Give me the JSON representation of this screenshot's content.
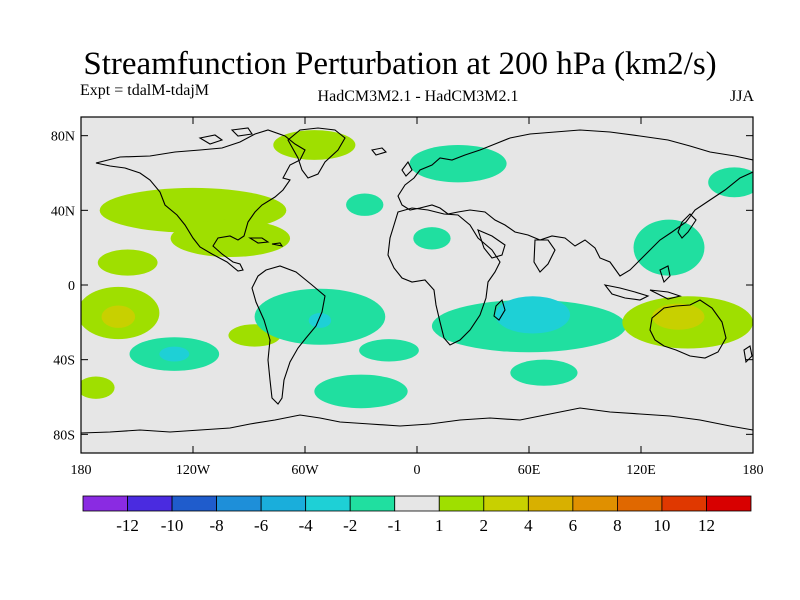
{
  "title": "Streamfunction Perturbation at 200 hPa (km2/s)",
  "experiment": "Expt = tdalM-tdajM",
  "model": "HadCM3M2.1 - HadCM3M2.1",
  "season": "JJA",
  "axes": {
    "lat_labels": [
      "80N",
      "40N",
      "0",
      "40S",
      "80S"
    ],
    "lat_values": [
      80,
      40,
      0,
      -40,
      -80
    ],
    "lon_labels": [
      "180",
      "120W",
      "60W",
      "0",
      "60E",
      "120E",
      "180"
    ],
    "lon_values": [
      -180,
      -120,
      -60,
      0,
      60,
      120,
      180
    ],
    "lat_range": [
      -90,
      90
    ],
    "lon_range": [
      -180,
      180
    ]
  },
  "colorbar": {
    "colors": [
      "#8a2be2",
      "#4a2be0",
      "#1f5ccc",
      "#1e8fd9",
      "#1aaedb",
      "#1ed0d6",
      "#20dfa0",
      "#e6e6e6",
      "#9fdf00",
      "#c8d000",
      "#d8b000",
      "#e09000",
      "#e06800",
      "#e03800",
      "#d80000"
    ],
    "labels": [
      "-12",
      "-10",
      "-8",
      "-6",
      "-4",
      "-2",
      "-1",
      "1",
      "2",
      "4",
      "6",
      "8",
      "10",
      "12"
    ]
  },
  "colors": {
    "background": "#e6e6e6",
    "positive_1": "#9fdf00",
    "positive_2": "#c8d000",
    "negative_1": "#20dfa0",
    "negative_2": "#1ed0d6"
  },
  "chart_data": {
    "type": "heatmap",
    "title": "Streamfunction Perturbation at 200 hPa (km2/s)",
    "units": "km2/s",
    "levels": [
      -12,
      -10,
      -8,
      -6,
      -4,
      -2,
      -1,
      1,
      2,
      4,
      6,
      8,
      10,
      12
    ],
    "features": [
      {
        "name": "north-atlantic-positive",
        "lon": -120,
        "lat": 40,
        "rx": 50,
        "ry": 12,
        "value": 1.5
      },
      {
        "name": "greenland-positive",
        "lon": -55,
        "lat": 75,
        "rx": 22,
        "ry": 8,
        "value": 1.5
      },
      {
        "name": "caribbean-positive",
        "lon": -100,
        "lat": 25,
        "rx": 32,
        "ry": 10,
        "value": 1.5
      },
      {
        "name": "hawaii-positive",
        "lon": -155,
        "lat": 12,
        "rx": 16,
        "ry": 7,
        "value": 1.5
      },
      {
        "name": "tropical-pacific-positive",
        "lon": -160,
        "lat": -15,
        "rx": 22,
        "ry": 14,
        "value": 1.5
      },
      {
        "name": "tropical-pacific-positive-core",
        "lon": -160,
        "lat": -17,
        "rx": 9,
        "ry": 6,
        "value": 2.5
      },
      {
        "name": "south-pacific-positive",
        "lon": -87,
        "lat": -27,
        "rx": 14,
        "ry": 6,
        "value": 1.5
      },
      {
        "name": "far-south-pacific-positive",
        "lon": -172,
        "lat": -55,
        "rx": 10,
        "ry": 6,
        "value": 1.5
      },
      {
        "name": "south-atlantic-negative",
        "lon": -52,
        "lat": -17,
        "rx": 35,
        "ry": 15,
        "value": -1.5
      },
      {
        "name": "south-atlantic-negative-core",
        "lon": -52,
        "lat": -19,
        "rx": 6,
        "ry": 4,
        "value": -2.5
      },
      {
        "name": "south-pacific-negative",
        "lon": -130,
        "lat": -37,
        "rx": 24,
        "ry": 9,
        "value": -1.5
      },
      {
        "name": "south-pacific-negative-core",
        "lon": -130,
        "lat": -37,
        "rx": 8,
        "ry": 4,
        "value": -2.5
      },
      {
        "name": "southern-ocean-atlantic-negative",
        "lon": -30,
        "lat": -57,
        "rx": 25,
        "ry": 9,
        "value": -1.5
      },
      {
        "name": "south-atlantic-small-negative",
        "lon": -15,
        "lat": -35,
        "rx": 16,
        "ry": 6,
        "value": -1.5
      },
      {
        "name": "scandinavia-negative",
        "lon": 22,
        "lat": 65,
        "rx": 26,
        "ry": 10,
        "value": -1.5
      },
      {
        "name": "north-atlantic-negative",
        "lon": -28,
        "lat": 43,
        "rx": 10,
        "ry": 6,
        "value": -1.5
      },
      {
        "name": "africa-negative",
        "lon": 8,
        "lat": 25,
        "rx": 10,
        "ry": 6,
        "value": -1.5
      },
      {
        "name": "indian-ocean-negative",
        "lon": 60,
        "lat": -22,
        "rx": 52,
        "ry": 14,
        "value": -1.5
      },
      {
        "name": "indian-ocean-negative-core",
        "lon": 62,
        "lat": -16,
        "rx": 20,
        "ry": 10,
        "value": -2.5
      },
      {
        "name": "southern-indian-negative",
        "lon": 68,
        "lat": -47,
        "rx": 18,
        "ry": 7,
        "value": -1.5
      },
      {
        "name": "asia-negative",
        "lon": 135,
        "lat": 20,
        "rx": 19,
        "ry": 15,
        "value": -1.5
      },
      {
        "name": "north-pacific-negative",
        "lon": 170,
        "lat": 55,
        "rx": 14,
        "ry": 8,
        "value": -1.5
      },
      {
        "name": "australia-positive",
        "lon": 145,
        "lat": -20,
        "rx": 35,
        "ry": 14,
        "value": 1.5
      },
      {
        "name": "australia-positive-core",
        "lon": 140,
        "lat": -17,
        "rx": 14,
        "ry": 7,
        "value": 2.5
      }
    ]
  }
}
